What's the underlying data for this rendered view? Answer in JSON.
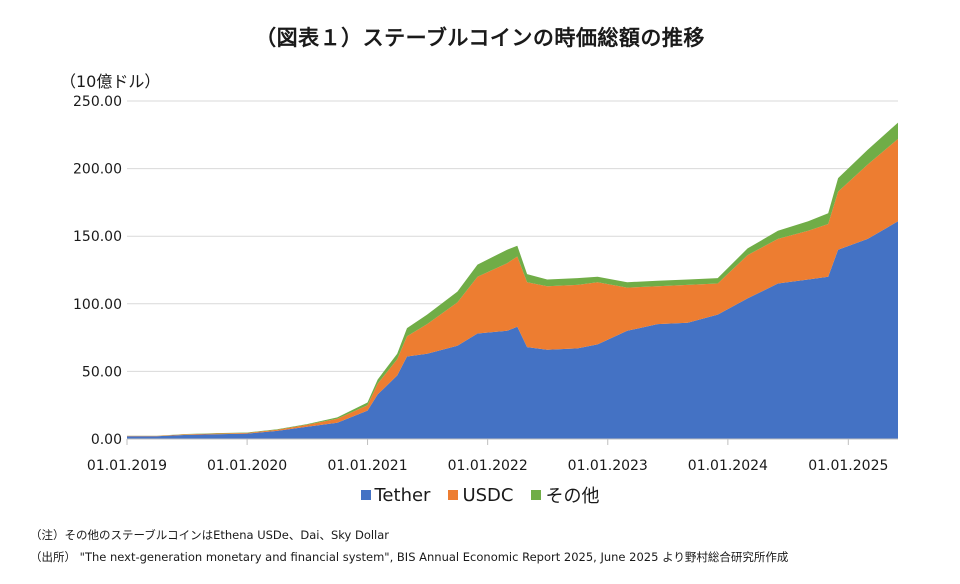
{
  "title": "（図表１）ステーブルコインの時価総額の推移",
  "y_unit": "（10億ドル）",
  "notes": [
    "（注）その他のステーブルコインはEthena USDe、Dai、Sky Dollar",
    "（出所） \"The next-generation monetary and financial system\", BIS Annual Economic Report 2025, June 2025 より野村総合研究所作成"
  ],
  "chart_data": {
    "type": "area",
    "stacked": true,
    "x_ticks": [
      "01.01.2019",
      "01.01.2020",
      "01.01.2021",
      "01.01.2022",
      "01.01.2023",
      "01.01.2024",
      "01.01.2025"
    ],
    "y_ticks": [
      "0.00",
      "50.00",
      "100.00",
      "150.00",
      "200.00",
      "250.00"
    ],
    "ylim": [
      0,
      250
    ],
    "grid": "horizontal",
    "legend_position": "bottom",
    "x": [
      "2019-01",
      "2019-04",
      "2019-07",
      "2019-10",
      "2020-01",
      "2020-04",
      "2020-07",
      "2020-10",
      "2021-01",
      "2021-02",
      "2021-04",
      "2021-05",
      "2021-07",
      "2021-10",
      "2021-12",
      "2022-03",
      "2022-04",
      "2022-05",
      "2022-07",
      "2022-10",
      "2022-12",
      "2023-03",
      "2023-06",
      "2023-09",
      "2023-12",
      "2024-03",
      "2024-06",
      "2024-09",
      "2024-11",
      "2024-12",
      "2025-03",
      "2025-06"
    ],
    "series": [
      {
        "name": "Tether",
        "color": "#4472C4",
        "values": [
          2,
          2,
          3,
          3.5,
          4,
          6,
          9,
          12,
          21,
          33,
          47,
          61,
          63,
          69,
          78,
          80,
          83,
          68,
          66,
          67,
          70,
          80,
          85,
          86,
          92,
          104,
          115,
          118,
          120,
          140,
          148,
          161
        ]
      },
      {
        "name": "USDC",
        "color": "#ED7D31",
        "values": [
          0.3,
          0.3,
          0.5,
          0.6,
          0.5,
          0.8,
          1.5,
          3,
          4,
          8,
          12,
          15,
          22,
          32,
          42,
          50,
          52,
          48,
          47,
          47,
          46,
          32,
          28,
          28,
          23,
          32,
          33,
          36,
          39,
          43,
          55,
          61
        ]
      },
      {
        "name": "その他",
        "color": "#70AD47",
        "values": [
          0.1,
          0.1,
          0.2,
          0.3,
          0.3,
          0.4,
          0.5,
          1,
          2,
          3,
          4,
          6,
          7,
          8,
          9,
          10,
          8,
          6,
          5,
          5,
          4,
          4,
          4,
          4,
          4,
          5,
          6,
          7,
          8,
          10,
          11,
          12
        ]
      }
    ]
  }
}
